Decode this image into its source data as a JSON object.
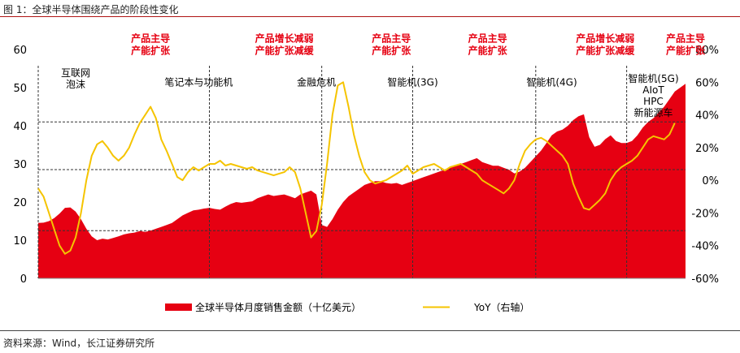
{
  "figure_title": "图 1：全球半导体围绕产品的阶段性变化",
  "source_note": "资料来源：Wind，长江证券研究所",
  "colors": {
    "area": "#e60012",
    "line": "#f5c400",
    "accent_text": "#e60012"
  },
  "chart_data": {
    "type": "area",
    "title": "",
    "y_left": {
      "min": 0,
      "max": 60,
      "ticks": [
        "0",
        "10",
        "20",
        "30",
        "40",
        "50",
        "60"
      ]
    },
    "y_right": {
      "min": -60,
      "max": 80,
      "ticks": [
        "-60%",
        "-40%",
        "-20%",
        "0%",
        "20%",
        "40%",
        "60%",
        "80%"
      ]
    },
    "series": [
      {
        "name": "全球半导体月度销售金额（十亿美元）",
        "type": "area",
        "axis": "left",
        "values": [
          14.5,
          14.6,
          15.0,
          15.8,
          17.0,
          18.5,
          18.6,
          17.5,
          15.5,
          13.0,
          11.0,
          10.0,
          10.4,
          10.2,
          10.6,
          11.0,
          11.5,
          11.8,
          12.0,
          12.4,
          12.2,
          12.5,
          13.0,
          13.5,
          14.0,
          14.5,
          15.5,
          16.5,
          17.2,
          17.8,
          18.0,
          18.3,
          18.5,
          18.2,
          18.0,
          18.8,
          19.5,
          20.0,
          19.8,
          20.0,
          20.2,
          21.0,
          21.5,
          22.0,
          21.6,
          21.8,
          22.0,
          21.5,
          21.0,
          22.0,
          22.5,
          23.0,
          22.0,
          14.0,
          13.5,
          15.5,
          18.0,
          20.0,
          21.5,
          22.5,
          23.5,
          24.5,
          25.0,
          25.5,
          25.5,
          25.0,
          24.8,
          25.0,
          24.5,
          25.0,
          25.5,
          26.0,
          26.5,
          27.0,
          27.5,
          28.0,
          28.5,
          29.0,
          29.5,
          30.0,
          30.5,
          31.0,
          31.5,
          30.5,
          30.0,
          29.5,
          29.5,
          29.0,
          28.5,
          27.5,
          28.0,
          29.0,
          30.5,
          32.0,
          33.5,
          35.5,
          37.5,
          38.5,
          39.0,
          40.0,
          41.5,
          42.5,
          43.0,
          37.0,
          34.5,
          35.0,
          36.5,
          37.5,
          36.0,
          35.5,
          35.5,
          36.0,
          37.5,
          39.5,
          41.0,
          42.0,
          43.5,
          45.0,
          47.0,
          49.0,
          50.0,
          51.0
        ]
      },
      {
        "name": "YoY（右轴）",
        "type": "line",
        "axis": "right",
        "unit": "%",
        "values": [
          -5.0,
          -10.0,
          -20.0,
          -30.0,
          -40.0,
          -45.0,
          -43.0,
          -35.0,
          -20.0,
          0.0,
          15.0,
          22.0,
          24.0,
          20.0,
          15.0,
          12.0,
          15.0,
          20.0,
          28.0,
          35.0,
          40.0,
          45.0,
          38.0,
          25.0,
          18.0,
          10.0,
          2.0,
          0.0,
          5.0,
          8.0,
          6.0,
          8.0,
          10.0,
          10.0,
          12.0,
          9.0,
          10.0,
          9.0,
          8.0,
          7.0,
          8.0,
          6.0,
          5.0,
          4.0,
          3.0,
          4.0,
          5.0,
          8.0,
          5.0,
          -5.0,
          -20.0,
          -35.0,
          -31.0,
          -15.0,
          10.0,
          40.0,
          58.0,
          60.0,
          45.0,
          28.0,
          15.0,
          5.0,
          0.0,
          -2.0,
          -1.0,
          0.0,
          2.0,
          4.0,
          6.0,
          9.0,
          4.0,
          6.0,
          8.0,
          9.0,
          10.0,
          8.0,
          6.0,
          8.0,
          9.0,
          10.0,
          8.0,
          6.0,
          4.0,
          0.0,
          -2.0,
          -4.0,
          -6.0,
          -8.0,
          -5.0,
          0.0,
          10.0,
          18.0,
          22.0,
          25.0,
          26.0,
          24.0,
          21.0,
          18.0,
          15.0,
          10.0,
          -2.0,
          -10.0,
          -17.0,
          -18.0,
          -15.0,
          -12.0,
          -8.0,
          0.0,
          5.0,
          8.0,
          10.0,
          12.0,
          15.0,
          20.0,
          25.0,
          27.0,
          26.0,
          25.0,
          28.0,
          35.0
        ]
      }
    ],
    "reference_lines": [
      {
        "axis": "left",
        "value": 41
      },
      {
        "axis": "left",
        "value": 28.5
      },
      {
        "axis": "left",
        "value": 12.5
      }
    ],
    "annotations": [
      {
        "text": "互联网\n泡沫",
        "at_index": 7,
        "y": 53,
        "color": "black"
      },
      {
        "text": "笔记本与功能机",
        "at_index": 30,
        "y": 50.5,
        "color": "black"
      },
      {
        "text": "金融危机",
        "at_index": 52,
        "y": 50.5,
        "color": "black"
      },
      {
        "text": "智能机(3G)",
        "at_index": 70,
        "y": 50.5,
        "color": "black"
      },
      {
        "text": "智能机(4G)",
        "at_index": 96,
        "y": 50.5,
        "color": "black"
      },
      {
        "text": "智能机(5G)\nAIoT\nHPC\n新能源车",
        "at_index": 115,
        "y": 51.5,
        "color": "black"
      },
      {
        "text": "产品主导\n产能扩张",
        "at_index": 21,
        "y": 62,
        "color": "red"
      },
      {
        "text": "产品增长减弱\n产能扩张减缓",
        "at_index": 46,
        "y": 62,
        "color": "red"
      },
      {
        "text": "产品主导\n产能扩张",
        "at_index": 66,
        "y": 62,
        "color": "red"
      },
      {
        "text": "产品主导\n产能扩张",
        "at_index": 84,
        "y": 62,
        "color": "red"
      },
      {
        "text": "产品增长减弱\n产能扩张减缓",
        "at_index": 106,
        "y": 62,
        "color": "red"
      },
      {
        "text": "产品主导\n产能扩张",
        "at_index": 121,
        "y": 62,
        "color": "red"
      }
    ],
    "period_dividers": [
      0,
      32,
      53,
      70,
      93,
      110
    ],
    "legend_position": "bottom"
  }
}
